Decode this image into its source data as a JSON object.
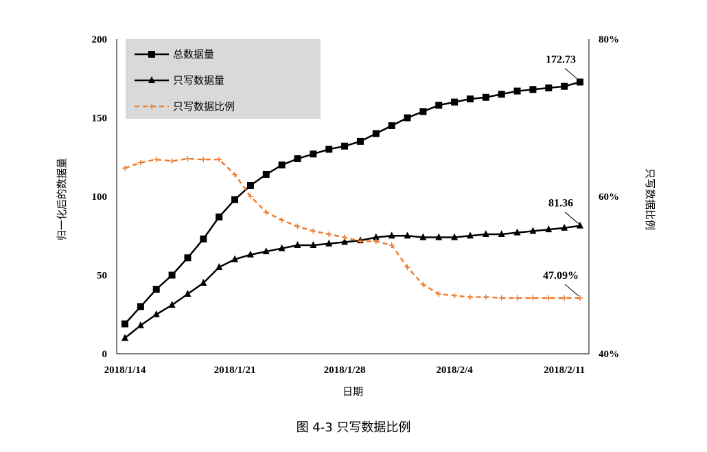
{
  "caption": "图 4-3  只写数据比例",
  "chart_data": {
    "type": "line",
    "xlabel": "日期",
    "ylabel_left": "归一化后的数据量",
    "ylabel_right": "只写数据比例",
    "ylim_left": [
      0,
      200
    ],
    "ylim_right": [
      0.4,
      0.8
    ],
    "yticks_left": [
      "0",
      "50",
      "100",
      "150",
      "200"
    ],
    "yticks_right": [
      "40%",
      "60%",
      "80%"
    ],
    "x_start_label": "2018/1/14",
    "x_tick_labels": [
      "2018/1/14",
      "2018/1/21",
      "2018/1/28",
      "2018/2/4",
      "2018/2/11"
    ],
    "legend_position": "top-left",
    "grid": false,
    "series": [
      {
        "name": "总数据量",
        "axis": "left",
        "color": "#000000",
        "marker": "square",
        "dashed": false,
        "values": [
          19,
          30,
          41,
          50,
          61,
          73,
          87,
          98,
          107,
          114,
          120,
          124,
          127,
          130,
          132,
          135,
          140,
          145,
          150,
          154,
          158,
          160,
          162,
          163,
          165,
          167,
          168,
          169,
          170,
          172.73
        ]
      },
      {
        "name": "只写数据量",
        "axis": "left",
        "color": "#000000",
        "marker": "triangle",
        "dashed": false,
        "values": [
          10,
          18,
          25,
          31,
          38,
          45,
          55,
          60,
          63,
          65,
          67,
          69,
          69,
          70,
          71,
          72,
          74,
          75,
          75,
          74,
          74,
          74,
          75,
          76,
          76,
          77,
          78,
          79,
          80,
          81.36
        ]
      },
      {
        "name": "只写数据比例",
        "axis": "right",
        "color": "#ED7D31",
        "marker": "plus",
        "dashed": true,
        "values": [
          0.636,
          0.643,
          0.647,
          0.645,
          0.648,
          0.647,
          0.647,
          0.628,
          0.6,
          0.58,
          0.57,
          0.562,
          0.556,
          0.552,
          0.548,
          0.543,
          0.543,
          0.538,
          0.51,
          0.488,
          0.476,
          0.474,
          0.472,
          0.472,
          0.471,
          0.471,
          0.471,
          0.471,
          0.471,
          0.4709
        ]
      }
    ],
    "annotations": [
      {
        "text": "172.73",
        "series": 0
      },
      {
        "text": "81.36",
        "series": 1
      },
      {
        "text": "47.09%",
        "series": 2
      }
    ]
  }
}
